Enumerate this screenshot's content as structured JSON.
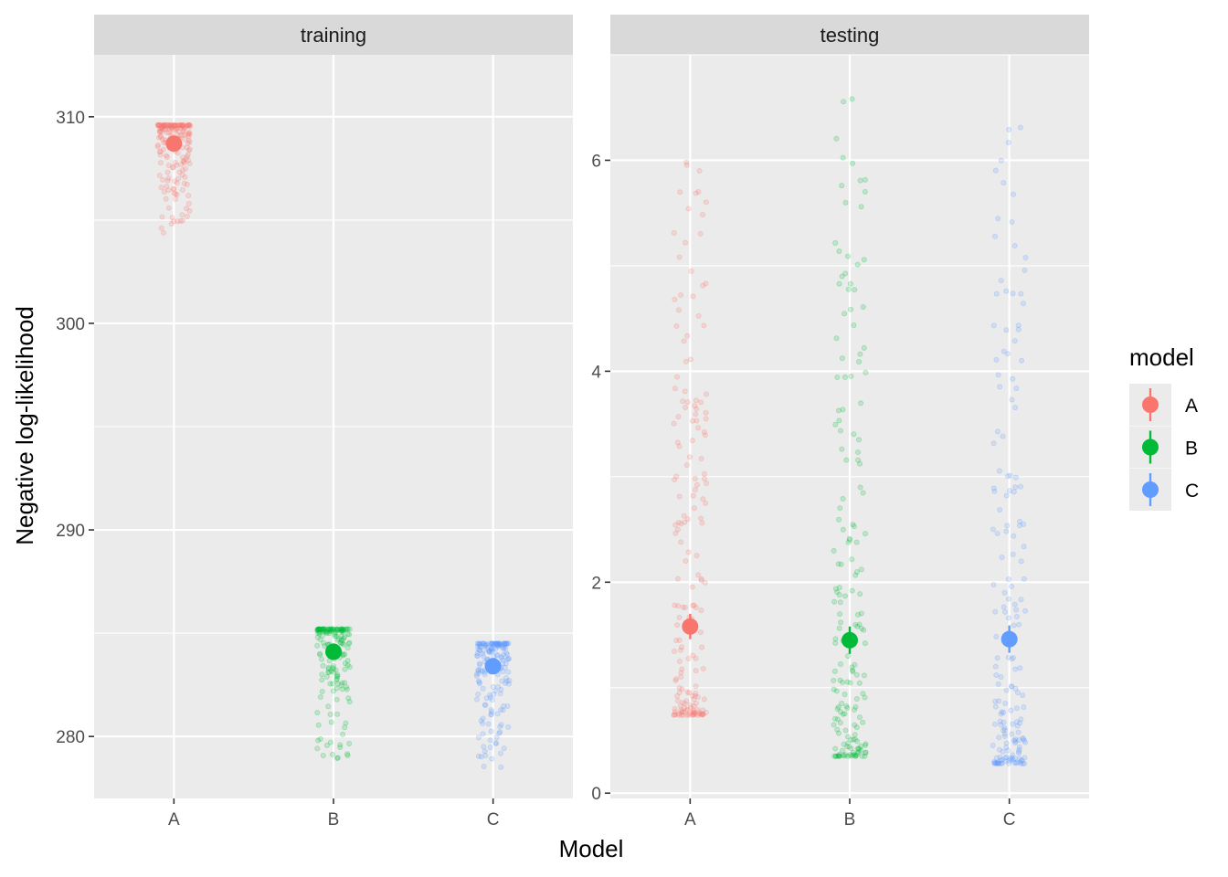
{
  "chart_data": {
    "type": "scatter",
    "xlabel": "Model",
    "ylabel": "Negative log-likelihood",
    "legend": {
      "title": "model",
      "placement": "right",
      "entries": [
        "A",
        "B",
        "C"
      ]
    },
    "colors": {
      "A": "#F8766D",
      "B": "#00BA38",
      "C": "#619CFF"
    },
    "categories": [
      "A",
      "B",
      "C"
    ],
    "grid": true,
    "panels": [
      {
        "title": "training",
        "ylim": [
          277,
          313
        ],
        "yticks": [
          280,
          290,
          300,
          310
        ],
        "yticklabels": [
          "280",
          "290",
          "300",
          "310"
        ],
        "series": [
          {
            "name": "A",
            "mean": 308.7,
            "se": 0.15,
            "points_range": [
              304.3,
              309.6
            ]
          },
          {
            "name": "B",
            "mean": 284.1,
            "se": 0.15,
            "points_range": [
              278.9,
              285.2
            ]
          },
          {
            "name": "C",
            "mean": 283.4,
            "se": 0.15,
            "points_range": [
              278.5,
              284.5
            ]
          }
        ]
      },
      {
        "title": "testing",
        "ylim": [
          -0.05,
          7.0
        ],
        "yticks": [
          0,
          2,
          4,
          6
        ],
        "yticklabels": [
          "0",
          "2",
          "4",
          "6"
        ],
        "series": [
          {
            "name": "A",
            "mean": 1.58,
            "se": 0.12,
            "points_range": [
              0.74,
              6.0
            ]
          },
          {
            "name": "B",
            "mean": 1.45,
            "se": 0.13,
            "points_range": [
              0.35,
              6.6
            ]
          },
          {
            "name": "C",
            "mean": 1.46,
            "se": 0.13,
            "points_range": [
              0.28,
              6.33
            ]
          }
        ]
      }
    ]
  }
}
